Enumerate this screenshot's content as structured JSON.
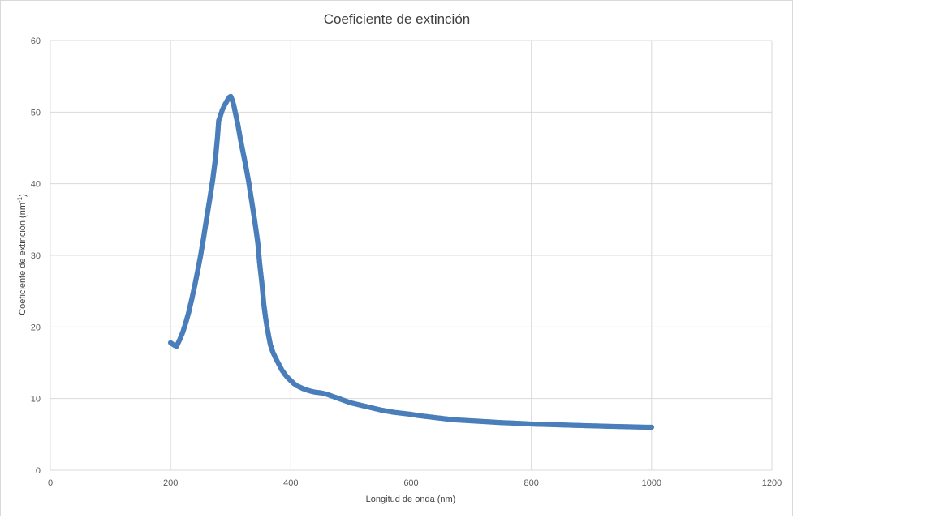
{
  "chart_data": {
    "type": "scatter",
    "title": "Coeficiente de extinción",
    "xlabel": "Longitud de onda (nm)",
    "ylabel_main": "Coeficiente de extinción (nm",
    "ylabel_sup": "-1",
    "ylabel_end": ")",
    "xlim": [
      0,
      1200
    ],
    "ylim": [
      0,
      60
    ],
    "xticks": [
      "0",
      "200",
      "400",
      "600",
      "800",
      "1000",
      "1200"
    ],
    "yticks": [
      "0",
      "10",
      "20",
      "30",
      "40",
      "50",
      "60"
    ],
    "grid": true,
    "legend": "none",
    "color": "#4a7ebb",
    "points": [
      [
        200,
        17.8
      ],
      [
        205,
        17.5
      ],
      [
        210,
        17.3
      ],
      [
        215,
        18.2
      ],
      [
        220,
        19.2
      ],
      [
        225,
        20.5
      ],
      [
        230,
        22.0
      ],
      [
        235,
        23.8
      ],
      [
        240,
        25.7
      ],
      [
        245,
        27.8
      ],
      [
        250,
        30.0
      ],
      [
        255,
        32.5
      ],
      [
        260,
        35.2
      ],
      [
        265,
        37.8
      ],
      [
        270,
        40.5
      ],
      [
        275,
        43.8
      ],
      [
        278,
        46.5
      ],
      [
        280,
        48.8
      ],
      [
        283,
        49.5
      ],
      [
        286,
        50.3
      ],
      [
        290,
        51.0
      ],
      [
        294,
        51.6
      ],
      [
        298,
        52.1
      ],
      [
        300,
        52.2
      ],
      [
        302,
        51.8
      ],
      [
        305,
        51.0
      ],
      [
        308,
        49.8
      ],
      [
        312,
        48.2
      ],
      [
        316,
        46.3
      ],
      [
        320,
        44.6
      ],
      [
        325,
        42.5
      ],
      [
        330,
        40.2
      ],
      [
        335,
        37.5
      ],
      [
        340,
        34.8
      ],
      [
        345,
        31.8
      ],
      [
        348,
        29.0
      ],
      [
        352,
        26.0
      ],
      [
        355,
        23.2
      ],
      [
        358,
        21.3
      ],
      [
        360,
        20.2
      ],
      [
        363,
        18.8
      ],
      [
        366,
        17.5
      ],
      [
        370,
        16.5
      ],
      [
        375,
        15.6
      ],
      [
        380,
        14.8
      ],
      [
        385,
        14.0
      ],
      [
        390,
        13.4
      ],
      [
        395,
        12.9
      ],
      [
        400,
        12.5
      ],
      [
        405,
        12.1
      ],
      [
        410,
        11.8
      ],
      [
        415,
        11.6
      ],
      [
        420,
        11.4
      ],
      [
        430,
        11.1
      ],
      [
        440,
        10.9
      ],
      [
        450,
        10.8
      ],
      [
        460,
        10.6
      ],
      [
        470,
        10.3
      ],
      [
        480,
        10.0
      ],
      [
        490,
        9.7
      ],
      [
        500,
        9.4
      ],
      [
        510,
        9.2
      ],
      [
        520,
        9.0
      ],
      [
        530,
        8.8
      ],
      [
        540,
        8.6
      ],
      [
        550,
        8.4
      ],
      [
        560,
        8.25
      ],
      [
        570,
        8.1
      ],
      [
        580,
        8.0
      ],
      [
        590,
        7.9
      ],
      [
        600,
        7.8
      ],
      [
        610,
        7.65
      ],
      [
        620,
        7.55
      ],
      [
        630,
        7.45
      ],
      [
        640,
        7.35
      ],
      [
        650,
        7.25
      ],
      [
        660,
        7.15
      ],
      [
        670,
        7.05
      ],
      [
        680,
        7.0
      ],
      [
        690,
        6.95
      ],
      [
        700,
        6.9
      ],
      [
        710,
        6.85
      ],
      [
        720,
        6.8
      ],
      [
        730,
        6.75
      ],
      [
        740,
        6.7
      ],
      [
        750,
        6.65
      ],
      [
        760,
        6.62
      ],
      [
        770,
        6.58
      ],
      [
        780,
        6.54
      ],
      [
        790,
        6.5
      ],
      [
        800,
        6.45
      ],
      [
        810,
        6.42
      ],
      [
        820,
        6.4
      ],
      [
        830,
        6.38
      ],
      [
        840,
        6.35
      ],
      [
        850,
        6.32
      ],
      [
        860,
        6.3
      ],
      [
        870,
        6.27
      ],
      [
        880,
        6.25
      ],
      [
        890,
        6.22
      ],
      [
        900,
        6.2
      ],
      [
        910,
        6.18
      ],
      [
        920,
        6.15
      ],
      [
        930,
        6.13
      ],
      [
        940,
        6.11
      ],
      [
        950,
        6.09
      ],
      [
        960,
        6.07
      ],
      [
        970,
        6.05
      ],
      [
        980,
        6.03
      ],
      [
        990,
        6.01
      ],
      [
        1000,
        6.0
      ]
    ]
  }
}
